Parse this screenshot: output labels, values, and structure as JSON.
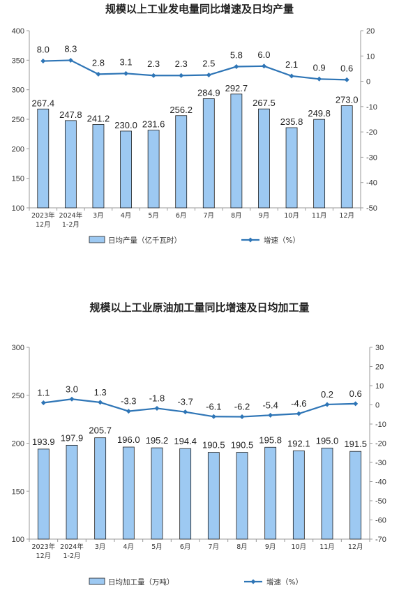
{
  "chart_data": [
    {
      "type": "bar",
      "title": "规模以上工业发电量同比增速及日均产量",
      "categories": [
        [
          "2023年",
          "12月"
        ],
        [
          "2024年",
          "1-2月"
        ],
        [
          "3月"
        ],
        [
          "4月"
        ],
        [
          "5月"
        ],
        [
          "6月"
        ],
        [
          "7月"
        ],
        [
          "8月"
        ],
        [
          "9月"
        ],
        [
          "10月"
        ],
        [
          "11月"
        ],
        [
          "12月"
        ]
      ],
      "y_left": {
        "min": 100,
        "max": 400,
        "ticks": [
          100,
          150,
          200,
          250,
          300,
          350,
          400
        ]
      },
      "y_right": {
        "min": -50,
        "max": 20,
        "ticks": [
          -50,
          -40,
          -30,
          -20,
          -10,
          0,
          10,
          20
        ]
      },
      "series": [
        {
          "name": "日均产量（亿千瓦时）",
          "type": "bar",
          "axis": "left",
          "color": "#9DC9F2",
          "labels": [
            "267.4",
            "247.8",
            "241.2",
            "230.0",
            "231.6",
            "256.2",
            "284.9",
            "292.7",
            "267.5",
            "235.8",
            "249.8",
            "273.0"
          ],
          "values": [
            267.4,
            247.8,
            241.2,
            230.0,
            231.6,
            256.2,
            284.9,
            292.7,
            267.5,
            235.8,
            249.8,
            273.0
          ]
        },
        {
          "name": "增速（%）",
          "type": "line",
          "axis": "right",
          "color": "#2E75B6",
          "labels": [
            "8.0",
            "8.3",
            "2.8",
            "3.1",
            "2.3",
            "2.3",
            "2.5",
            "5.8",
            "6.0",
            "2.1",
            "0.9",
            "0.6"
          ],
          "values": [
            8.0,
            8.3,
            2.8,
            3.1,
            2.3,
            2.3,
            2.5,
            5.8,
            6.0,
            2.1,
            0.9,
            0.6
          ]
        }
      ],
      "legend_position": "bottom"
    },
    {
      "type": "bar",
      "title": "规模以上工业原油加工量同比增速及日均加工量",
      "categories": [
        [
          "2023年",
          "12月"
        ],
        [
          "2024年",
          "1-2月"
        ],
        [
          "3月"
        ],
        [
          "4月"
        ],
        [
          "5月"
        ],
        [
          "6月"
        ],
        [
          "7月"
        ],
        [
          "8月"
        ],
        [
          "9月"
        ],
        [
          "10月"
        ],
        [
          "11月"
        ],
        [
          "12月"
        ]
      ],
      "y_left": {
        "min": 100,
        "max": 300,
        "ticks": [
          100,
          150,
          200,
          250,
          300
        ]
      },
      "y_right": {
        "min": -70,
        "max": 30,
        "ticks": [
          -70,
          -60,
          -50,
          -40,
          -30,
          -20,
          -10,
          0,
          10,
          20,
          30
        ]
      },
      "series": [
        {
          "name": "日均加工量（万吨）",
          "type": "bar",
          "axis": "left",
          "color": "#9DC9F2",
          "labels": [
            "193.9",
            "197.9",
            "205.7",
            "196.0",
            "195.2",
            "194.4",
            "190.5",
            "190.5",
            "195.8",
            "192.1",
            "195.0",
            "191.5"
          ],
          "values": [
            193.9,
            197.9,
            205.7,
            196.0,
            195.2,
            194.4,
            190.5,
            190.5,
            195.8,
            192.1,
            195.0,
            191.5
          ]
        },
        {
          "name": "增速（%）",
          "type": "line",
          "axis": "right",
          "color": "#2E75B6",
          "labels": [
            "1.1",
            "3.0",
            "1.3",
            "-3.3",
            "-1.8",
            "-3.7",
            "-6.1",
            "-6.2",
            "-5.4",
            "-4.6",
            "0.2",
            "0.6"
          ],
          "values": [
            1.1,
            3.0,
            1.3,
            -3.3,
            -1.8,
            -3.7,
            -6.1,
            -6.2,
            -5.4,
            -4.6,
            0.2,
            0.6
          ]
        }
      ],
      "legend_position": "bottom"
    }
  ]
}
